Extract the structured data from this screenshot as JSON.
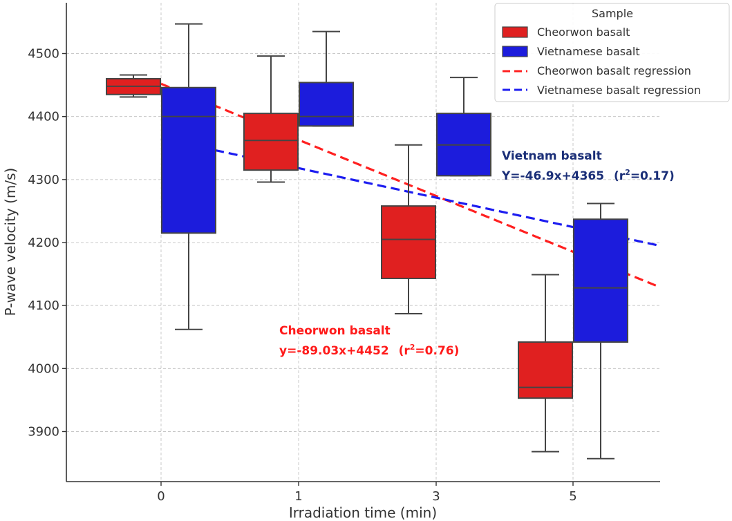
{
  "chart_data": {
    "type": "box",
    "xlabel": "Irradiation time (min)",
    "ylabel": "P-wave velocity (m/s)",
    "categories": [
      "0",
      "1",
      "3",
      "5"
    ],
    "ylim": [
      3820,
      4580
    ],
    "yticks": [
      3900,
      4000,
      4100,
      4200,
      4300,
      4400,
      4500
    ],
    "grid": true,
    "legend": {
      "title": "Sample",
      "position": "top-right",
      "entries": [
        {
          "label": "Cheorwon basalt",
          "kind": "patch",
          "color": "#e02020"
        },
        {
          "label": "Vietnamese basalt",
          "kind": "patch",
          "color": "#1c1cdc"
        },
        {
          "label": "Cheorwon basalt regression",
          "kind": "dashed",
          "color": "#ff2020"
        },
        {
          "label": "Vietnamese basalt regression",
          "kind": "dashed",
          "color": "#1c1cf0"
        }
      ]
    },
    "series": [
      {
        "name": "Cheorwon basalt",
        "color": "#e02020",
        "boxes": [
          {
            "category": "0",
            "whisker_low": 4431,
            "q1": 4435,
            "median": 4448,
            "q3": 4460,
            "whisker_high": 4466
          },
          {
            "category": "1",
            "whisker_low": 4296,
            "q1": 4315,
            "median": 4362,
            "q3": 4405,
            "whisker_high": 4496
          },
          {
            "category": "3",
            "whisker_low": 4087,
            "q1": 4143,
            "median": 4205,
            "q3": 4258,
            "whisker_high": 4355
          },
          {
            "category": "5",
            "whisker_low": 3868,
            "q1": 3953,
            "median": 3970,
            "q3": 4042,
            "whisker_high": 4149
          }
        ]
      },
      {
        "name": "Vietnamese basalt",
        "color": "#1c1cdc",
        "boxes": [
          {
            "category": "0",
            "whisker_low": 4062,
            "q1": 4215,
            "median": 4400,
            "q3": 4446,
            "whisker_high": 4547
          },
          {
            "category": "1",
            "whisker_low": 4385,
            "q1": 4385,
            "median": 4400,
            "q3": 4454,
            "whisker_high": 4535
          },
          {
            "category": "3",
            "whisker_low": 4306,
            "q1": 4306,
            "median": 4355,
            "q3": 4405,
            "whisker_high": 4462
          },
          {
            "category": "5",
            "whisker_low": 3857,
            "q1": 4042,
            "median": 4128,
            "q3": 4237,
            "whisker_high": 4262
          }
        ]
      }
    ],
    "regressions": [
      {
        "name": "Cheorwon basalt regression",
        "slope": -89.03,
        "intercept": 4452,
        "color": "#ff2020"
      },
      {
        "name": "Vietnamese basalt regression",
        "slope": -46.9,
        "intercept": 4365,
        "color": "#1c1cf0"
      }
    ],
    "annotations": [
      {
        "name": "vietnam",
        "title": "Vietnam basalt",
        "eq_main": "Y=-46.9x+4365",
        "eq_r": "(r",
        "eq_sup": "2",
        "eq_end": "=0.17)",
        "color": "#1b2f78"
      },
      {
        "name": "cheorwon",
        "title": "Cheorwon basalt",
        "eq_main": "y=-89.03x+4452",
        "eq_r": "(r",
        "eq_sup": "2",
        "eq_end": "=0.76)",
        "color": "#ff1a1a"
      }
    ]
  }
}
